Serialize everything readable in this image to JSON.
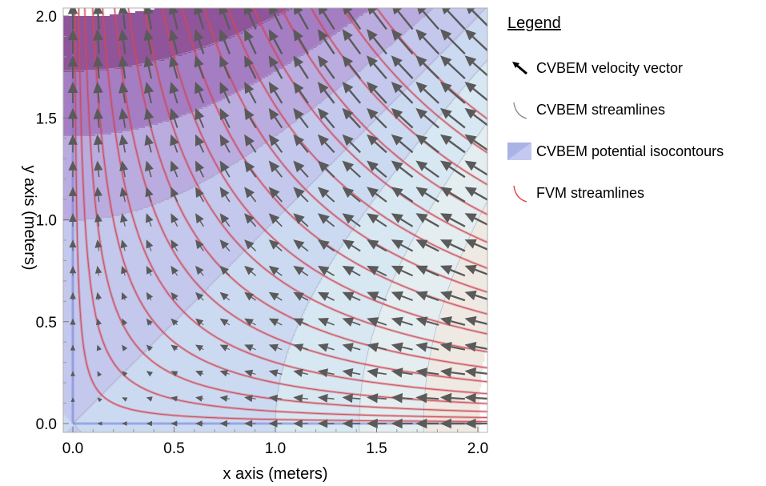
{
  "chart_data": {
    "type": "vector-field",
    "xlabel": "x axis (meters)",
    "ylabel": "y axis (meters)",
    "xlim": [
      0,
      2.0
    ],
    "ylim": [
      0,
      2.0
    ],
    "xticks": [
      "0.0",
      "0.5",
      "1.0",
      "1.5",
      "2.0"
    ],
    "yticks": [
      "0.0",
      "0.5",
      "1.0",
      "1.5",
      "2.0"
    ],
    "velocity_field": "u = -x, v = y",
    "vector_grid_step": 0.125,
    "streamline_constants_xy": [
      0.02,
      0.06,
      0.12,
      0.2,
      0.3,
      0.42,
      0.56,
      0.72,
      0.9,
      1.1,
      1.32,
      1.56,
      1.82,
      2.1,
      2.4,
      2.72,
      3.06
    ],
    "potential_contour_levels_x2_minus_y2": [
      -4,
      -3,
      -2,
      -1,
      0,
      1,
      2,
      3,
      4
    ],
    "potential_colors": [
      "#83418f",
      "#9b6fbd",
      "#b3a3db",
      "#bcc2ea",
      "#c7d6ef",
      "#d4e6f1",
      "#e1ecee",
      "#ece8e0"
    ],
    "colors": {
      "vector": "#5a5a5a",
      "cvbem_streamline": "#7d7d7d",
      "fvm_streamline": "#e04050"
    },
    "legend_position": "right"
  },
  "legend": {
    "title": "Legend",
    "items": [
      {
        "label": "CVBEM velocity vector",
        "icon": "arrow-icon"
      },
      {
        "label": "CVBEM streamlines",
        "icon": "gray-arc-icon"
      },
      {
        "label": "CVBEM potential isocontours",
        "icon": "blue-swatch-icon"
      },
      {
        "label": "FVM streamlines",
        "icon": "red-arc-icon"
      }
    ]
  }
}
